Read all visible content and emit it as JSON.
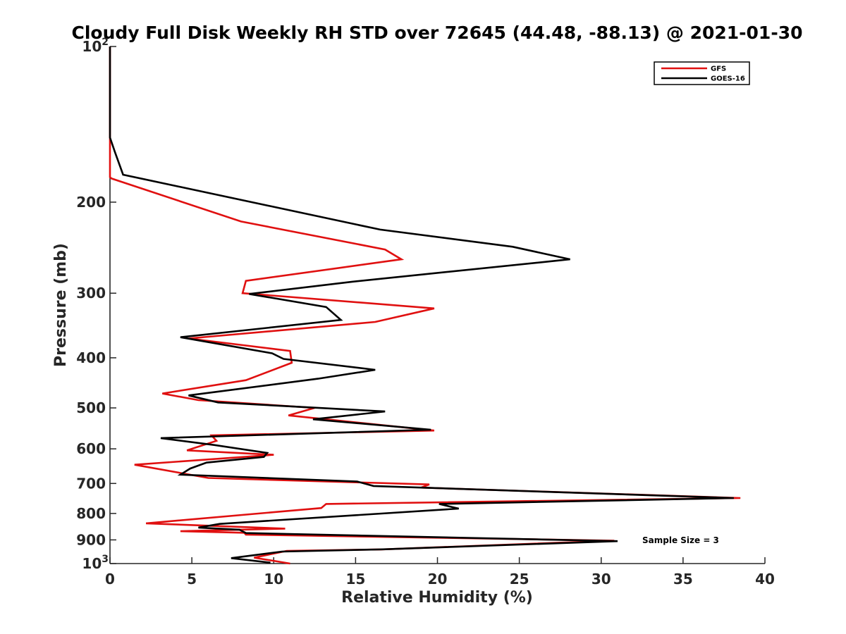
{
  "chart_data": {
    "type": "line",
    "title": "Cloudy Full Disk Weekly RH STD over 72645 (44.48, -88.13) @ 2021-01-30",
    "xlabel": "Relative Humidity (%)",
    "ylabel": "Pressure (mb)",
    "xlim": [
      0,
      40
    ],
    "ylim": [
      100,
      1000
    ],
    "y_scale": "log",
    "y_reversed": true,
    "grid": false,
    "legend_position": "top-right",
    "x_ticks": [
      "0",
      "5",
      "10",
      "15",
      "20",
      "25",
      "30",
      "35",
      "40"
    ],
    "y_ticks": [
      {
        "value": 100,
        "label": "10",
        "exp": "2"
      },
      {
        "value": 200,
        "label": "200"
      },
      {
        "value": 300,
        "label": "300"
      },
      {
        "value": 400,
        "label": "400"
      },
      {
        "value": 500,
        "label": "500"
      },
      {
        "value": 600,
        "label": "600"
      },
      {
        "value": 700,
        "label": "700"
      },
      {
        "value": 800,
        "label": "800"
      },
      {
        "value": 900,
        "label": "900"
      },
      {
        "value": 1000,
        "label": "10",
        "exp": "3"
      }
    ],
    "annotation": "Sample Size = 3",
    "series": [
      {
        "name": "GFS",
        "color": "#e01010",
        "points": [
          [
            0,
            100
          ],
          [
            0,
            150
          ],
          [
            0,
            179
          ],
          [
            0.1,
            180
          ],
          [
            8,
            218
          ],
          [
            16.8,
            247
          ],
          [
            17.8,
            258
          ],
          [
            8.3,
            284
          ],
          [
            8.1,
            300
          ],
          [
            19.8,
            321
          ],
          [
            16.2,
            341
          ],
          [
            4.8,
            367
          ],
          [
            11.0,
            388
          ],
          [
            11.1,
            409
          ],
          [
            8.3,
            442
          ],
          [
            3.2,
            469
          ],
          [
            5.4,
            483
          ],
          [
            12.5,
            500
          ],
          [
            10.9,
            517
          ],
          [
            19.8,
            553
          ],
          [
            6.2,
            565
          ],
          [
            6.5,
            579
          ],
          [
            4.7,
            604
          ],
          [
            10.0,
            616
          ],
          [
            1.5,
            644
          ],
          [
            6.0,
            683
          ],
          [
            19.5,
            703
          ],
          [
            19.0,
            713
          ],
          [
            38.5,
            747
          ],
          [
            13.2,
            767
          ],
          [
            12.9,
            781
          ],
          [
            2.2,
            836
          ],
          [
            10.7,
            856
          ],
          [
            4.3,
            866
          ],
          [
            8.2,
            872
          ],
          [
            8.3,
            879
          ],
          [
            30.8,
            903
          ],
          [
            16.6,
            939
          ],
          [
            10.8,
            945
          ],
          [
            8.8,
            974
          ],
          [
            11.0,
            1000
          ]
        ]
      },
      {
        "name": "GOES-16",
        "color": "#000000",
        "points": [
          [
            0,
            100
          ],
          [
            0,
            150
          ],
          [
            0.3,
            160
          ],
          [
            0.8,
            177
          ],
          [
            16.5,
            226
          ],
          [
            24.6,
            244
          ],
          [
            28.1,
            258
          ],
          [
            14.8,
            285
          ],
          [
            8.5,
            301
          ],
          [
            13.2,
            319
          ],
          [
            14.1,
            338
          ],
          [
            4.3,
            365
          ],
          [
            9.9,
            392
          ],
          [
            10.6,
            402
          ],
          [
            16.2,
            422
          ],
          [
            12.7,
            439
          ],
          [
            4.8,
            473
          ],
          [
            6.6,
            488
          ],
          [
            16.8,
            508
          ],
          [
            12.4,
            526
          ],
          [
            19.6,
            551
          ],
          [
            3.1,
            572
          ],
          [
            6.4,
            590
          ],
          [
            9.6,
            611
          ],
          [
            9.4,
            622
          ],
          [
            5.9,
            638
          ],
          [
            4.9,
            655
          ],
          [
            4.3,
            673
          ],
          [
            15.1,
            694
          ],
          [
            16.1,
            708
          ],
          [
            38.1,
            747
          ],
          [
            20.1,
            767
          ],
          [
            21.3,
            783
          ],
          [
            6.7,
            838
          ],
          [
            5.4,
            852
          ],
          [
            7.9,
            860
          ],
          [
            8.3,
            873
          ],
          [
            31.0,
            905
          ],
          [
            16.5,
            939
          ],
          [
            10.5,
            948
          ],
          [
            7.4,
            976
          ],
          [
            9.8,
            996
          ]
        ]
      }
    ]
  }
}
